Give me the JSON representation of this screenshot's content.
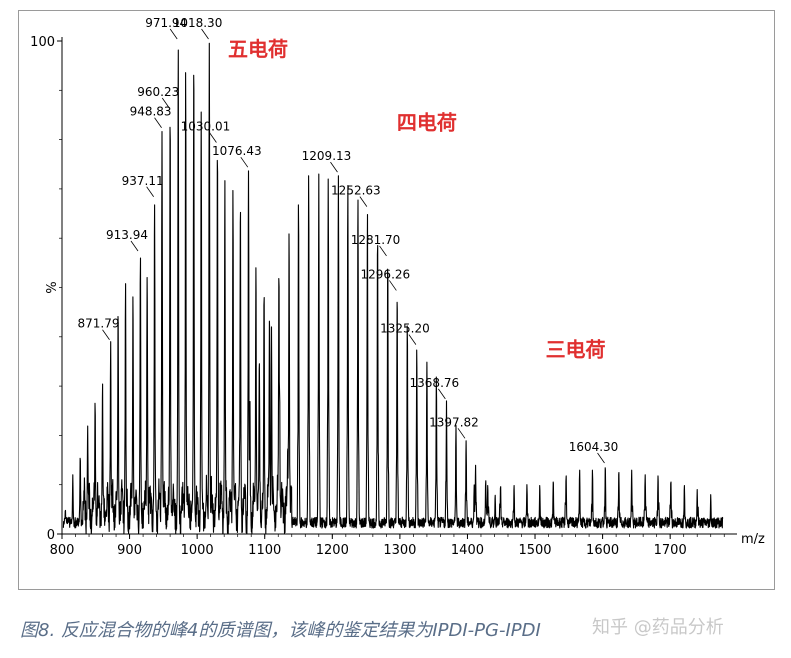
{
  "chart_data": {
    "type": "line",
    "xlabel": "m/z",
    "ylabel": "%",
    "xlim": [
      800,
      1790
    ],
    "ylim": [
      0,
      100
    ],
    "x_ticks": [
      800,
      900,
      1000,
      1100,
      1200,
      1300,
      1400,
      1500,
      1600,
      1700
    ],
    "y_ticks": [
      0,
      100
    ],
    "grid": false,
    "peak_color": "#000000",
    "annotation_color": "#e03030",
    "charge_annotations": [
      {
        "text": "五电荷",
        "x": 1090,
        "y": 97
      },
      {
        "text": "四电荷",
        "x": 1340,
        "y": 82
      },
      {
        "text": "三电荷",
        "x": 1560,
        "y": 36
      }
    ],
    "labeled_peaks": [
      {
        "mz": 871.79,
        "intensity": 39
      },
      {
        "mz": 913.94,
        "intensity": 57
      },
      {
        "mz": 937.11,
        "intensity": 68
      },
      {
        "mz": 948.83,
        "intensity": 82
      },
      {
        "mz": 960.23,
        "intensity": 86
      },
      {
        "mz": 971.94,
        "intensity": 100
      },
      {
        "mz": 1018.3,
        "intensity": 100
      },
      {
        "mz": 1030.01,
        "intensity": 79
      },
      {
        "mz": 1076.43,
        "intensity": 74
      },
      {
        "mz": 1209.13,
        "intensity": 73
      },
      {
        "mz": 1252.63,
        "intensity": 66
      },
      {
        "mz": 1281.7,
        "intensity": 56
      },
      {
        "mz": 1296.26,
        "intensity": 49
      },
      {
        "mz": 1325.2,
        "intensity": 38
      },
      {
        "mz": 1368.76,
        "intensity": 27
      },
      {
        "mz": 1397.82,
        "intensity": 19
      },
      {
        "mz": 1604.3,
        "intensity": 14
      }
    ],
    "series": [
      {
        "name": "",
        "charge": 5,
        "x": [
          805,
          816,
          827,
          838,
          849,
          860,
          872,
          883,
          894,
          905,
          916,
          926,
          937,
          948,
          960,
          972,
          983,
          995,
          1006,
          1018,
          1030,
          1041,
          1053,
          1064,
          1076,
          1087,
          1099,
          1110,
          1122,
          1134
        ],
        "y": [
          5,
          12,
          16,
          22,
          27,
          31,
          39,
          46,
          51,
          49,
          57,
          53,
          68,
          82,
          86,
          100,
          94,
          97,
          86,
          100,
          79,
          72,
          70,
          68,
          74,
          55,
          50,
          42,
          30,
          18
        ]
      },
      {
        "name": "",
        "charge": 4,
        "x": [
          1063,
          1078,
          1092,
          1107,
          1121,
          1136,
          1150,
          1165,
          1180,
          1194,
          1209,
          1223,
          1238,
          1252,
          1267,
          1282,
          1296,
          1311,
          1325,
          1340,
          1354,
          1369,
          1383,
          1398,
          1412,
          1427,
          1441
        ],
        "y": [
          20,
          28,
          36,
          45,
          54,
          62,
          68,
          73,
          73,
          72,
          73,
          71,
          69,
          66,
          61,
          56,
          49,
          43,
          38,
          35,
          32,
          27,
          22,
          19,
          14,
          11,
          8
        ]
      },
      {
        "name": "",
        "charge": 3,
        "x": [
          1410,
          1430,
          1449,
          1469,
          1488,
          1507,
          1527,
          1546,
          1566,
          1585,
          1604,
          1624,
          1643,
          1663,
          1682,
          1701,
          1721,
          1740,
          1760,
          1779
        ],
        "y": [
          10,
          10,
          10,
          10,
          10,
          10,
          11,
          12,
          13,
          13,
          14,
          13,
          13,
          12,
          12,
          11,
          10,
          9,
          8,
          7
        ]
      }
    ]
  },
  "caption": "图8. 反应混合物的峰4的质谱图，该峰的鉴定结果为IPDI-PG-IPDI",
  "watermark": "知乎 @药品分析"
}
